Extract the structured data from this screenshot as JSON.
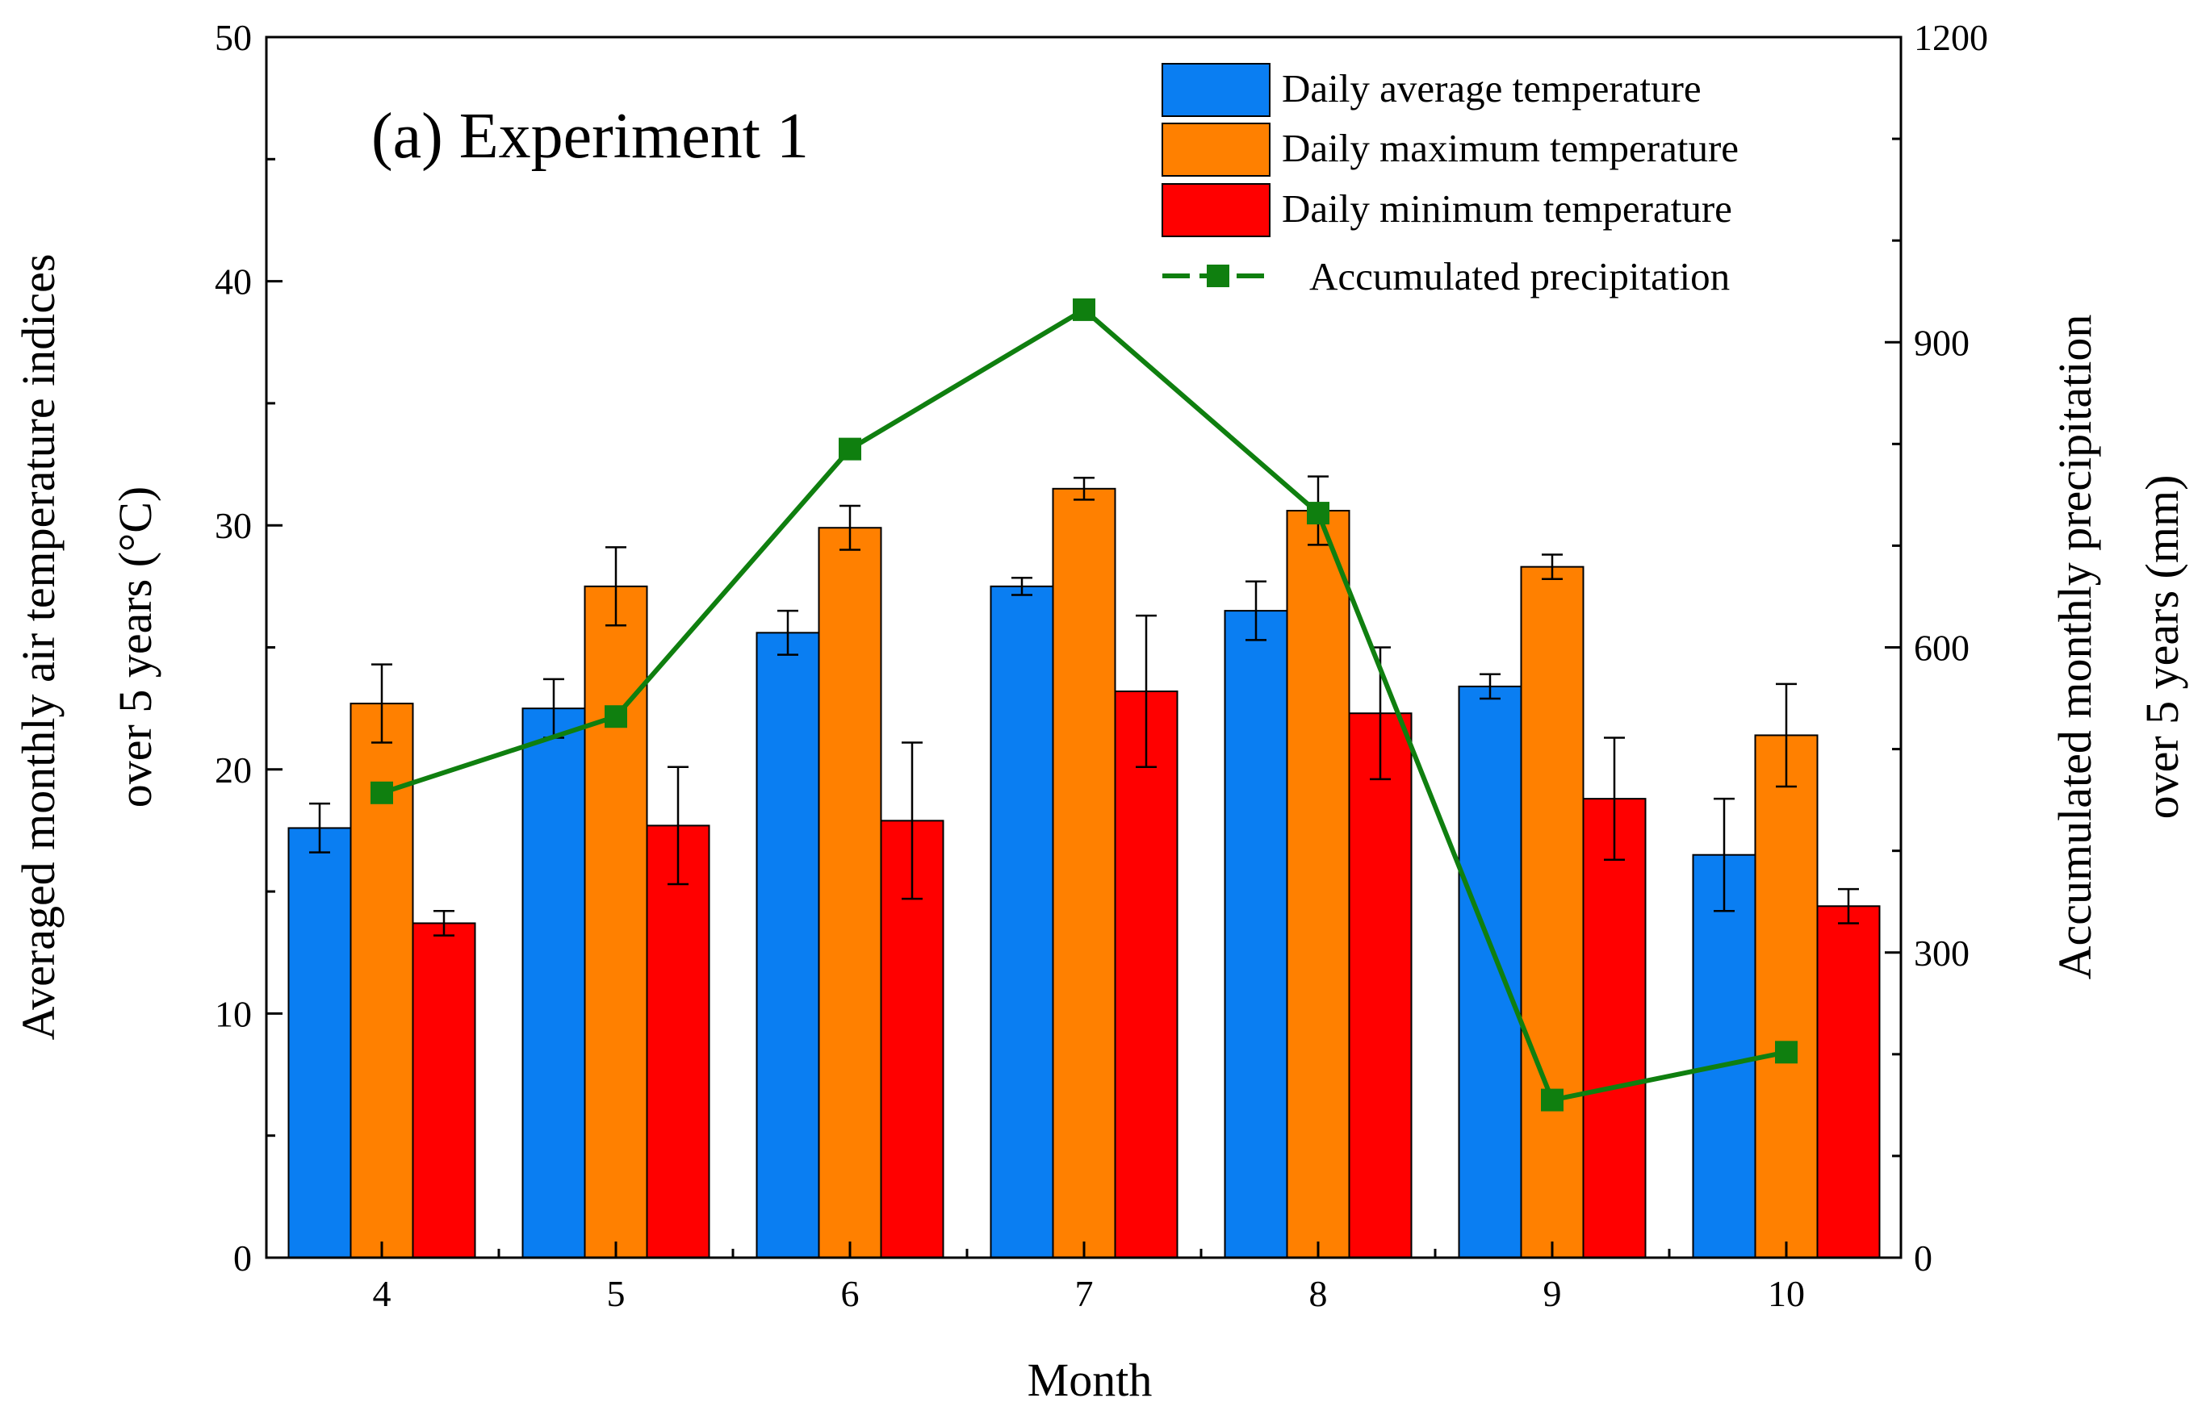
{
  "chart_data": {
    "type": "bar",
    "title": "(a) Experiment 1",
    "xlabel": "Month",
    "ylabel": [
      "Averaged monthly air temperature indices",
      "over 5 years (°C)"
    ],
    "y2label": [
      "Accumulated monthly precipitation",
      "over 5 years (mm)"
    ],
    "categories": [
      "4",
      "5",
      "6",
      "7",
      "8",
      "9",
      "10"
    ],
    "ylim": [
      0,
      50
    ],
    "y_ticks": [
      "0",
      "10",
      "20",
      "30",
      "40",
      "50"
    ],
    "y2lim": [
      0,
      1200
    ],
    "y2_ticks": [
      "0",
      "300",
      "600",
      "900",
      "1200"
    ],
    "legend_position": "top-right",
    "series": [
      {
        "name": "Daily average temperature",
        "kind": "bar",
        "color": "#0a7ef2",
        "values": [
          17.6,
          22.5,
          25.6,
          27.5,
          26.5,
          23.4,
          16.5
        ],
        "errors": [
          1.0,
          1.2,
          0.9,
          0.35,
          1.2,
          0.5,
          2.3
        ]
      },
      {
        "name": "Daily maximum temperature",
        "kind": "bar",
        "color": "#ff8000",
        "values": [
          22.7,
          27.5,
          29.9,
          31.5,
          30.6,
          28.3,
          21.4
        ],
        "errors": [
          1.6,
          1.6,
          0.9,
          0.45,
          1.4,
          0.5,
          2.1
        ]
      },
      {
        "name": "Daily minimum temperature",
        "kind": "bar",
        "color": "#ff0000",
        "values": [
          13.7,
          17.7,
          17.9,
          23.2,
          22.3,
          18.8,
          14.4
        ],
        "errors": [
          0.5,
          2.4,
          3.2,
          3.1,
          2.7,
          2.5,
          0.7
        ]
      },
      {
        "name": "Accumulated precipitation",
        "kind": "line",
        "axis": "right",
        "color": "#0f7f0f",
        "values": [
          457,
          532,
          795,
          932,
          732,
          155,
          202
        ]
      }
    ]
  }
}
